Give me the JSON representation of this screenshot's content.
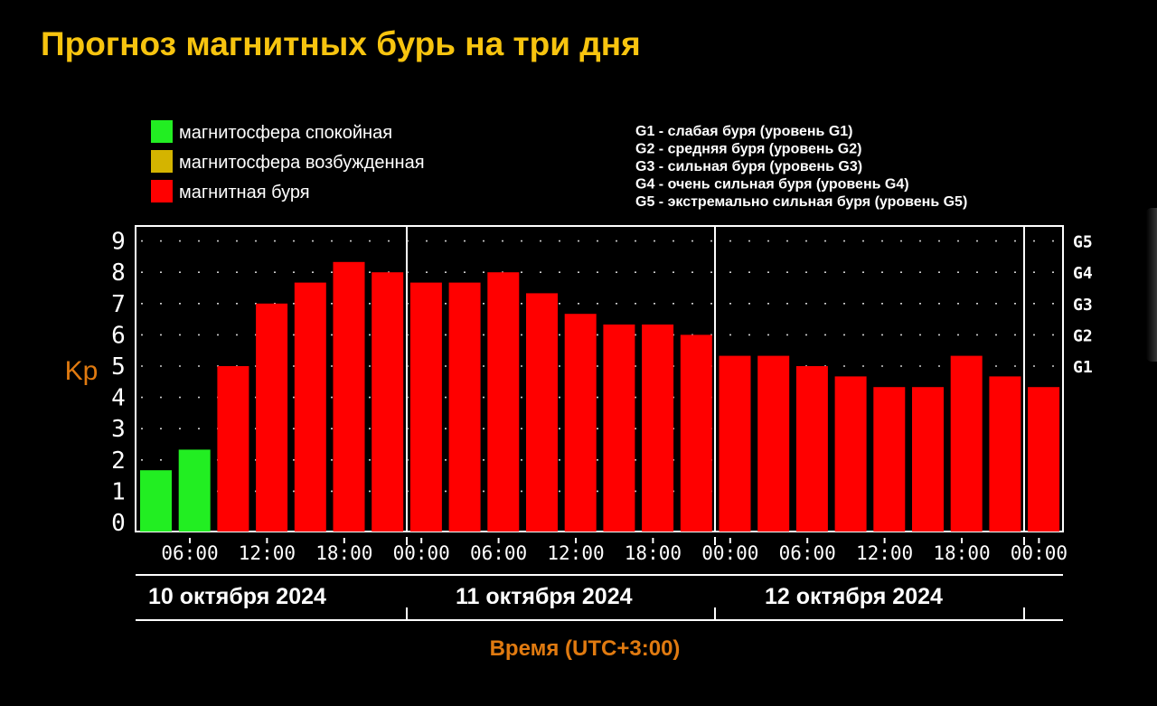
{
  "title": "Прогноз магнитных бурь на три дня",
  "colors": {
    "background": "#000000",
    "title": "#f7c40f",
    "quiet": "#22ee22",
    "excited": "#d4b400",
    "storm": "#ff0000",
    "axis_label": "#e07a10",
    "text": "#ffffff"
  },
  "chart_data": {
    "type": "bar",
    "title": "Прогноз магнитных бурь на три дня",
    "ylabel": "Kp",
    "xlabel": "Время (UTC+3:00)",
    "ylim": [
      0,
      9
    ],
    "yticks": [
      "0",
      "1",
      "2",
      "3",
      "4",
      "5",
      "6",
      "7",
      "8",
      "9"
    ],
    "g_levels": [
      {
        "label": "G1",
        "kp": 5
      },
      {
        "label": "G2",
        "kp": 6
      },
      {
        "label": "G3",
        "kp": 7
      },
      {
        "label": "G4",
        "kp": 8
      },
      {
        "label": "G5",
        "kp": 9
      }
    ],
    "legend": [
      {
        "label": "магнитосфера спокойная",
        "color": "#22ee22"
      },
      {
        "label": "магнитосфера возбужденная",
        "color": "#d4b400"
      },
      {
        "label": "магнитная буря",
        "color": "#ff0000"
      }
    ],
    "g_legend": [
      "G1 - слабая буря (уровень G1)",
      "G2 - средняя буря (уровень G2)",
      "G3 - сильная буря (уровень G3)",
      "G4 - очень сильная буря (уровень G4)",
      "G5 - экстремально сильная буря (уровень G5)"
    ],
    "time_ticks": [
      "06:00",
      "12:00",
      "18:00",
      "00:00",
      "06:00",
      "12:00",
      "18:00",
      "00:00",
      "06:00",
      "12:00",
      "18:00",
      "00:00"
    ],
    "days": [
      "10 октября 2024",
      "11 октября 2024",
      "12 октября 2024"
    ],
    "bars_per_day": 8,
    "series": [
      {
        "name": "Kp",
        "values": [
          1.67,
          2.33,
          5.0,
          7.0,
          7.67,
          8.33,
          8.0,
          7.67,
          7.67,
          8.0,
          7.33,
          6.67,
          6.33,
          6.33,
          6.0,
          5.33,
          5.33,
          5.0,
          4.67,
          4.33,
          4.33,
          5.33,
          4.67,
          4.33
        ],
        "levels": [
          "quiet",
          "quiet",
          "storm",
          "storm",
          "storm",
          "storm",
          "storm",
          "storm",
          "storm",
          "storm",
          "storm",
          "storm",
          "storm",
          "storm",
          "storm",
          "storm",
          "storm",
          "storm",
          "storm",
          "storm",
          "storm",
          "storm",
          "storm",
          "storm"
        ]
      }
    ]
  }
}
